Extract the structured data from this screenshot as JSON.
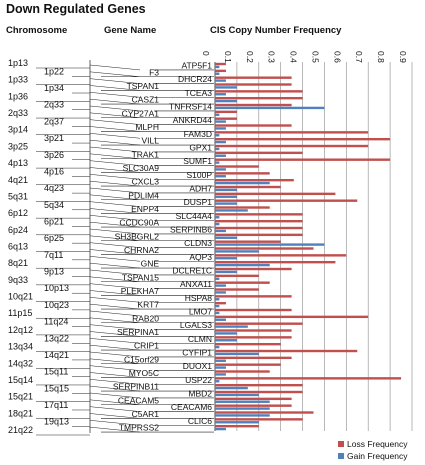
{
  "title": "Down Regulated Genes",
  "headers": {
    "chromosome": "Chromosome",
    "gene_name": "Gene Name",
    "frequency": "CIS Copy Number Frequency"
  },
  "colors": {
    "loss": "#c0504d",
    "gain": "#4f81bd"
  },
  "chart_data": {
    "type": "bar",
    "orientation": "horizontal",
    "title": "CIS Copy Number Frequency",
    "xlim": [
      0,
      0.9
    ],
    "xticks": [
      "0",
      "0.1",
      "0.2",
      "0.3",
      "0.4",
      "0.5",
      "0.6",
      "0.7",
      "0.8",
      "0.9"
    ],
    "categories": [
      "ATP5F1",
      "F3",
      "DHCR24",
      "TSPAN1",
      "TCEA3",
      "CASZ1",
      "TNFRSF14",
      "CYP27A1",
      "ANKRD44",
      "MLPH",
      "FAM3D",
      "VILL",
      "GPX1",
      "TRAK1",
      "SUMF1",
      "SLC30A9",
      "S100P",
      "CXCL3",
      "ADH7",
      "PDLIM4",
      "DUSP1",
      "ENPP4",
      "SLC44A4",
      "CCDC90A",
      "SERPINB6",
      "SH3BGRL2",
      "CLDN3",
      "CHRNA2",
      "AQP3",
      "GNE",
      "DCLRE1C",
      "TSPAN15",
      "ANXA11",
      "PLEKHA7",
      "HSPA8",
      "KRT7",
      "LMO7",
      "RAB20",
      "LGALS3",
      "SERPINA1",
      "CLMN",
      "CRIP1",
      "CYFIP1",
      "C15orf29",
      "DUOX1",
      "MYO5C",
      "USP22",
      "SERPINB11",
      "MBD2",
      "CEACAM5",
      "CEACAM6",
      "C5AR1",
      "CLIC6",
      "TMPRSS2"
    ],
    "series": [
      {
        "name": "Loss Frequency",
        "values": [
          0.05,
          0.05,
          0.35,
          0.35,
          0.4,
          0.4,
          0.35,
          0.1,
          0.1,
          0.35,
          0.7,
          0.8,
          0.7,
          0.4,
          0.8,
          0.2,
          0.25,
          0.36,
          0.3,
          0.55,
          0.65,
          0.25,
          0.4,
          0.4,
          0.4,
          0.4,
          0.3,
          0.45,
          0.6,
          0.55,
          0.35,
          0.2,
          0.25,
          0.2,
          0.35,
          0.05,
          0.35,
          0.7,
          0.4,
          0.35,
          0.35,
          0.3,
          0.65,
          0.35,
          0.3,
          0.25,
          0.85,
          0.4,
          0.4,
          0.35,
          0.35,
          0.45,
          0.4,
          0.2
        ]
      },
      {
        "name": "Gain Frequency",
        "values": [
          0.02,
          0.02,
          0.05,
          0.1,
          0.05,
          0.1,
          0.5,
          0.02,
          0.05,
          0.05,
          0.02,
          0.05,
          0.02,
          0.05,
          0.02,
          0.05,
          0.05,
          0.25,
          0.1,
          0.1,
          0.1,
          0.15,
          0.02,
          0.02,
          0.05,
          0.1,
          0.5,
          0.2,
          0.1,
          0.25,
          0.1,
          0.02,
          0.05,
          0.05,
          0.02,
          0.02,
          0.02,
          0.05,
          0.15,
          0.1,
          0.1,
          0.02,
          0.2,
          0.05,
          0.05,
          0.05,
          0.02,
          0.15,
          0.2,
          0.25,
          0.25,
          0.25,
          0.2,
          0.05
        ]
      }
    ]
  },
  "chromosomes": [
    "1p13",
    "1p22",
    "1p33",
    "1p34",
    "1p36",
    "2q33",
    "2q33",
    "2q37",
    "3p14",
    "3p21",
    "3p25",
    "3p26",
    "4p13",
    "4p16",
    "4q21",
    "4q23",
    "5q31",
    "5q34",
    "6p12",
    "6p21",
    "6p24",
    "6p25",
    "6q13",
    "7q11",
    "8q21",
    "9p13",
    "9q33",
    "10p13",
    "10q21",
    "10q23",
    "11p15",
    "11q24",
    "12q12",
    "13q22",
    "13q34",
    "14q21",
    "14q32",
    "15q11",
    "15q14",
    "15q15",
    "15q21",
    "17q11",
    "18q21",
    "19q13",
    "21q22"
  ],
  "legend": {
    "loss": "Loss Frequency",
    "gain": "Gain Frequency"
  }
}
